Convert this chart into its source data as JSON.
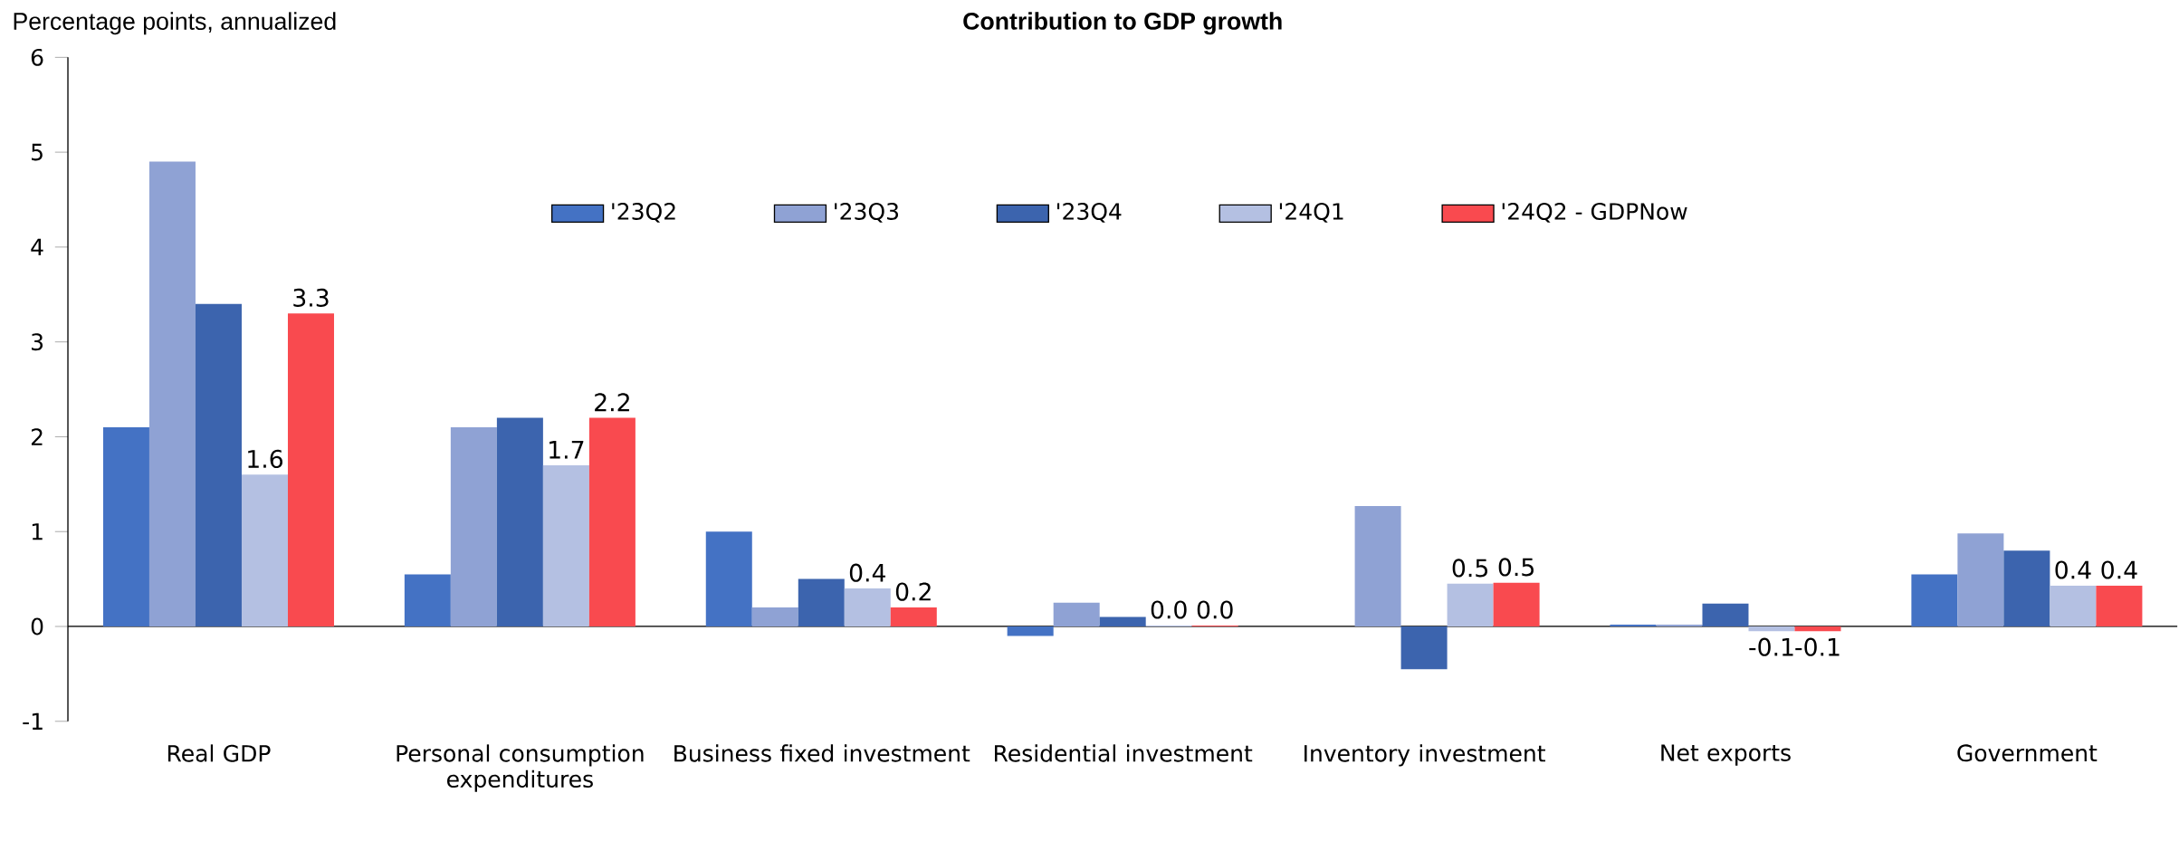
{
  "chart_data": {
    "type": "bar",
    "title": "Contribution to GDP growth",
    "ylabel": "Percentage points, annualized",
    "categories": [
      "Real GDP",
      "Personal consumption expenditures",
      "Business fixed investment",
      "Residential investment",
      "Inventory investment",
      "Net exports",
      "Government"
    ],
    "series": [
      {
        "name": "'23Q2",
        "color": "#4472c4",
        "values": [
          2.1,
          0.55,
          1.0,
          -0.1,
          0.0,
          0.02,
          0.55
        ]
      },
      {
        "name": "'23Q3",
        "color": "#8fa2d4",
        "values": [
          4.9,
          2.1,
          0.2,
          0.25,
          1.27,
          0.02,
          0.98
        ]
      },
      {
        "name": "'23Q4",
        "color": "#3c64ae",
        "values": [
          3.4,
          2.2,
          0.5,
          0.1,
          -0.45,
          0.24,
          0.8
        ]
      },
      {
        "name": "'24Q1",
        "color": "#b4c0e2",
        "values": [
          1.6,
          1.7,
          0.4,
          0.01,
          0.45,
          -0.05,
          0.43
        ],
        "value_labels": [
          "1.6",
          "1.7",
          "0.4",
          "0.0",
          "0.5",
          "-0.1",
          "0.4"
        ]
      },
      {
        "name": "'24Q2 - GDPNow",
        "color": "#f94a4f",
        "values": [
          3.3,
          2.2,
          0.2,
          0.01,
          0.46,
          -0.05,
          0.43
        ],
        "value_labels": [
          "3.3",
          "2.2",
          "0.2",
          "0.0",
          "0.5",
          "-0.1",
          "0.4"
        ]
      }
    ],
    "ylim": [
      -1,
      6
    ],
    "yticks": [
      -1,
      0,
      1,
      2,
      3,
      4,
      5,
      6
    ],
    "legend": "top"
  }
}
